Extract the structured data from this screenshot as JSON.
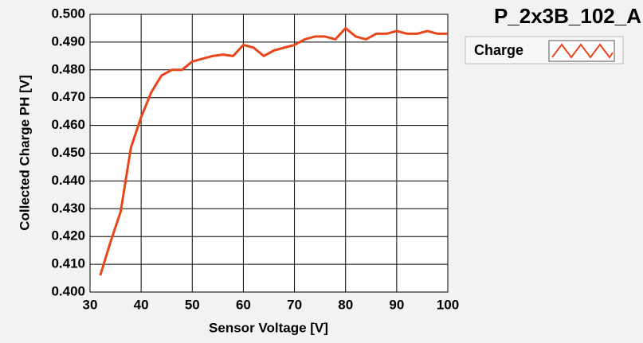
{
  "chart_data": {
    "type": "line",
    "title": "P_2x3B_102_A",
    "x_label": "Sensor Voltage [V]",
    "y_label": "Collected Charge PH [V]",
    "x": [
      32,
      34,
      36,
      38,
      40,
      42,
      44,
      46,
      48,
      50,
      52,
      54,
      56,
      58,
      60,
      62,
      64,
      66,
      68,
      70,
      72,
      74,
      76,
      78,
      80,
      82,
      84,
      86,
      88,
      90,
      92,
      94,
      96,
      98,
      100
    ],
    "series": [
      {
        "name": "Charge",
        "color": "#e8461a",
        "values": [
          0.406,
          0.418,
          0.429,
          0.452,
          0.463,
          0.472,
          0.478,
          0.48,
          0.48,
          0.483,
          0.484,
          0.485,
          0.4855,
          0.485,
          0.489,
          0.488,
          0.485,
          0.487,
          0.488,
          0.489,
          0.491,
          0.492,
          0.492,
          0.491,
          0.495,
          0.492,
          0.491,
          0.493,
          0.493,
          0.494,
          0.493,
          0.493,
          0.494,
          0.493,
          0.493
        ]
      }
    ],
    "xlim": [
      30,
      100
    ],
    "xticks": [
      30,
      40,
      50,
      60,
      70,
      80,
      90,
      100
    ],
    "ylim": [
      0.4,
      0.5
    ],
    "yticks": [
      {
        "value": 0.4,
        "label": "0.400"
      },
      {
        "value": 0.41,
        "label": "0.410"
      },
      {
        "value": 0.42,
        "label": "0.420"
      },
      {
        "value": 0.43,
        "label": "0.430"
      },
      {
        "value": 0.44,
        "label": "0.440"
      },
      {
        "value": 0.45,
        "label": "0.450"
      },
      {
        "value": 0.46,
        "label": "0.460"
      },
      {
        "value": 0.47,
        "label": "0.470"
      },
      {
        "value": 0.48,
        "label": "0.480"
      },
      {
        "value": 0.49,
        "label": "0.490"
      },
      {
        "value": 0.5,
        "label": "0.500"
      }
    ],
    "grid": true
  }
}
